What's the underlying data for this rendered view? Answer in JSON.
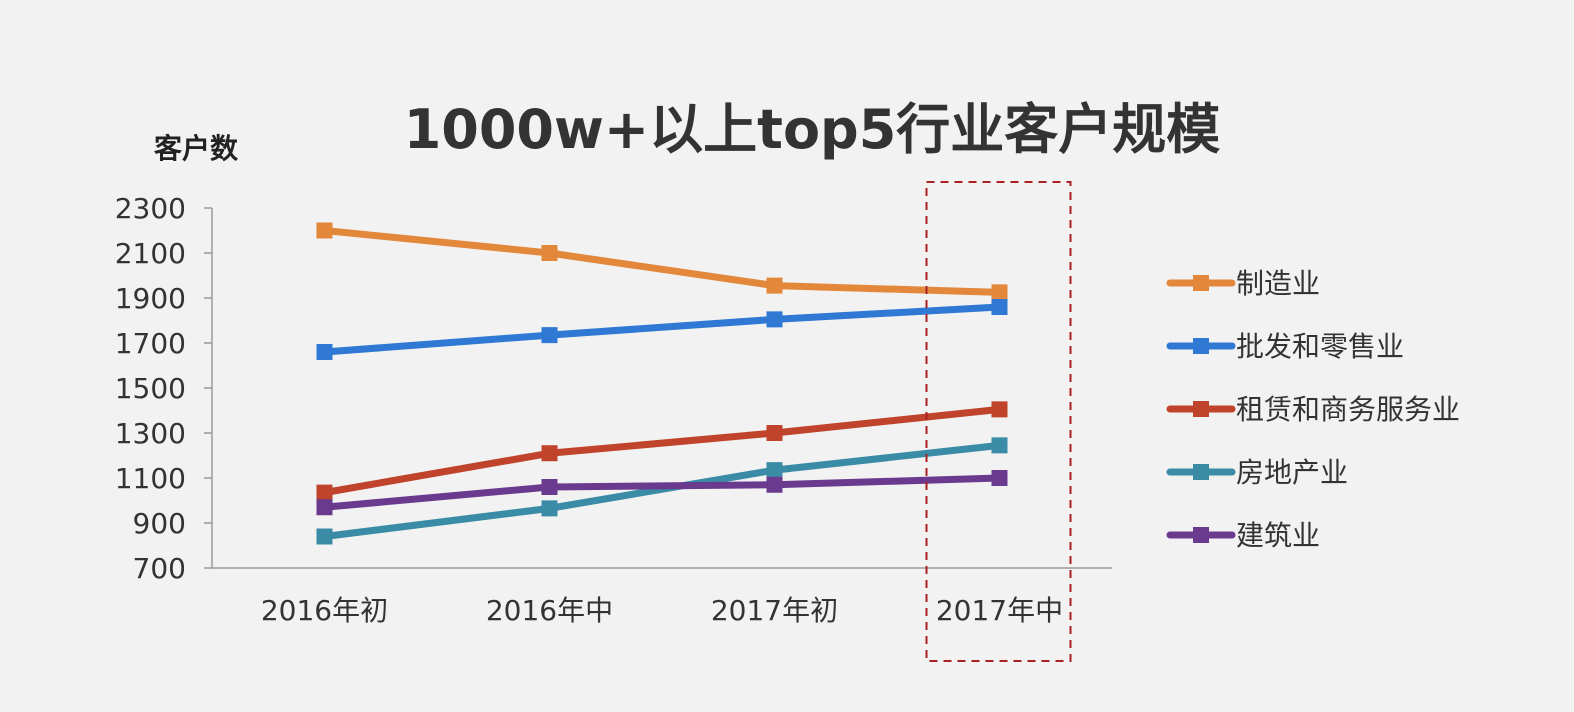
{
  "chart_data": {
    "type": "line",
    "title": "1000w+以上top5行业客户规模",
    "xlabel": "",
    "ylabel": "客户数",
    "categories": [
      "2016年初",
      "2016年中",
      "2017年初",
      "2017年中"
    ],
    "ylim": [
      700,
      2300
    ],
    "yticks": [
      700,
      900,
      1100,
      1300,
      1500,
      1700,
      1900,
      2100,
      2300
    ],
    "grid": false,
    "legend": "right",
    "highlight_category": "2017年中",
    "highlight_color": "#a82020",
    "series": [
      {
        "name": "制造业",
        "color": "#e3883a",
        "values": [
          2200,
          2100,
          1955,
          1925
        ]
      },
      {
        "name": "批发和零售业",
        "color": "#2f78d4",
        "values": [
          1660,
          1735,
          1805,
          1860
        ]
      },
      {
        "name": "租赁和商务服务业",
        "color": "#c0432b",
        "values": [
          1035,
          1210,
          1300,
          1405
        ]
      },
      {
        "name": "房地产业",
        "color": "#3a8ba6",
        "values": [
          840,
          965,
          1135,
          1245
        ]
      },
      {
        "name": "建筑业",
        "color": "#6a3a8e",
        "values": [
          970,
          1060,
          1070,
          1100
        ]
      }
    ]
  }
}
